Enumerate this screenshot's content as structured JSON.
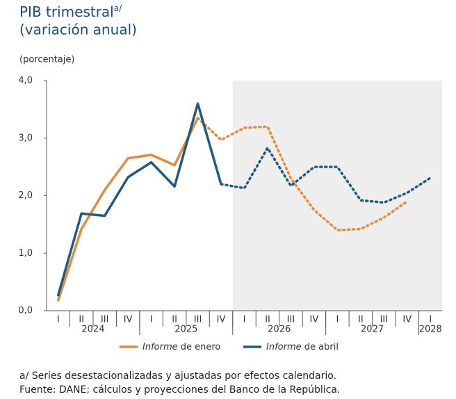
{
  "chart_data": {
    "type": "line",
    "title": "PIB trimestral",
    "title_note": "a/",
    "subtitle": "(variación anual)",
    "y_label": "(porcentaje)",
    "categories": [
      "I",
      "II",
      "III",
      "IV",
      "I",
      "II",
      "III",
      "IV",
      "I",
      "II",
      "III",
      "IV",
      "I",
      "II",
      "III",
      "IV",
      "I"
    ],
    "groups": [
      {
        "label": "2024",
        "span": 4
      },
      {
        "label": "2025",
        "span": 4
      },
      {
        "label": "2026",
        "span": 4
      },
      {
        "label": "2027",
        "span": 4
      },
      {
        "label": "2028",
        "span": 1
      }
    ],
    "shade_from": 8,
    "series": [
      {
        "name": "Informe de enero",
        "color": "#e38b3b",
        "dotted_from": 6,
        "values": [
          0.18,
          1.42,
          2.1,
          2.65,
          2.71,
          2.53,
          3.35,
          2.97,
          3.18,
          3.2,
          2.3,
          1.75,
          1.4,
          1.42,
          1.62,
          1.9,
          null
        ]
      },
      {
        "name": "Informe de abril",
        "color": "#1f5a80",
        "dotted_from": 7,
        "values": [
          0.27,
          1.69,
          1.65,
          2.32,
          2.58,
          2.16,
          3.6,
          2.2,
          2.13,
          2.83,
          2.17,
          2.5,
          2.5,
          1.92,
          1.88,
          2.05,
          2.31
        ]
      }
    ],
    "ylim": [
      0,
      4
    ],
    "yticks": [
      {
        "value": 0,
        "label": "0,0"
      },
      {
        "value": 1,
        "label": "1,0"
      },
      {
        "value": 2,
        "label": "2,0"
      },
      {
        "value": 3,
        "label": "3,0"
      },
      {
        "value": 4,
        "label": "4,0"
      }
    ],
    "footnotes": [
      "a/ Series desestacionalizadas y ajustadas por efectos calendario.",
      "Fuente: DANE; cálculos y proyecciones del Banco de la República."
    ]
  }
}
